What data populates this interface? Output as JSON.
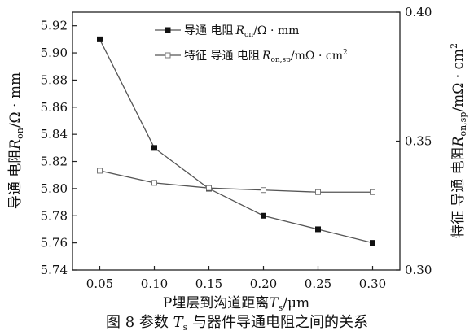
{
  "chart_data": {
    "type": "line",
    "x": [
      0.05,
      0.1,
      0.15,
      0.2,
      0.25,
      0.3
    ],
    "x_ticks": [
      "0.05",
      "0.10",
      "0.15",
      "0.20",
      "0.25",
      "0.30"
    ],
    "xlim": [
      0.025,
      0.325
    ],
    "xlabel_parts": {
      "main": "P埋层到沟道距离",
      "var": "T",
      "sub": "s",
      "unit": "/μm"
    },
    "y_left": {
      "ylim": [
        5.74,
        5.93
      ],
      "ticks": [
        "5.74",
        "5.76",
        "5.78",
        "5.80",
        "5.82",
        "5.84",
        "5.86",
        "5.88",
        "5.90",
        "5.92"
      ],
      "label_parts": {
        "main": "导通 电阻",
        "var": "R",
        "sub": "on",
        "unit": "/Ω · mm"
      }
    },
    "y_right": {
      "ylim": [
        0.3,
        0.4
      ],
      "ticks": [
        "0.30",
        "0.35",
        "0.40"
      ],
      "label_parts": {
        "main": "特征 导通 电阻",
        "var": "R",
        "sub": "on,sp",
        "unit": "/mΩ · cm",
        "sup": "2"
      }
    },
    "series": [
      {
        "name_parts": {
          "main": "导通 电阻",
          "var": "R",
          "sub": "on",
          "unit": "/Ω · mm"
        },
        "axis": "left",
        "marker": "filled-square",
        "color": "#555555",
        "values": [
          5.91,
          5.83,
          5.8,
          5.78,
          5.77,
          5.76
        ]
      },
      {
        "name_parts": {
          "main": "特征 导通 电阻",
          "var": "R",
          "sub": "on,sp",
          "unit": "/mΩ · cm",
          "sup": "2"
        },
        "axis": "right",
        "marker": "open-square",
        "color": "#555555",
        "values": [
          0.3385,
          0.3338,
          0.3318,
          0.331,
          0.3302,
          0.3302
        ]
      }
    ],
    "legend_position": "top-right",
    "grid": false
  },
  "caption": {
    "prefix": "图 8  参数 ",
    "var": "T",
    "sub": "s",
    "suffix": " 与器件导通电阻之间的关系"
  }
}
